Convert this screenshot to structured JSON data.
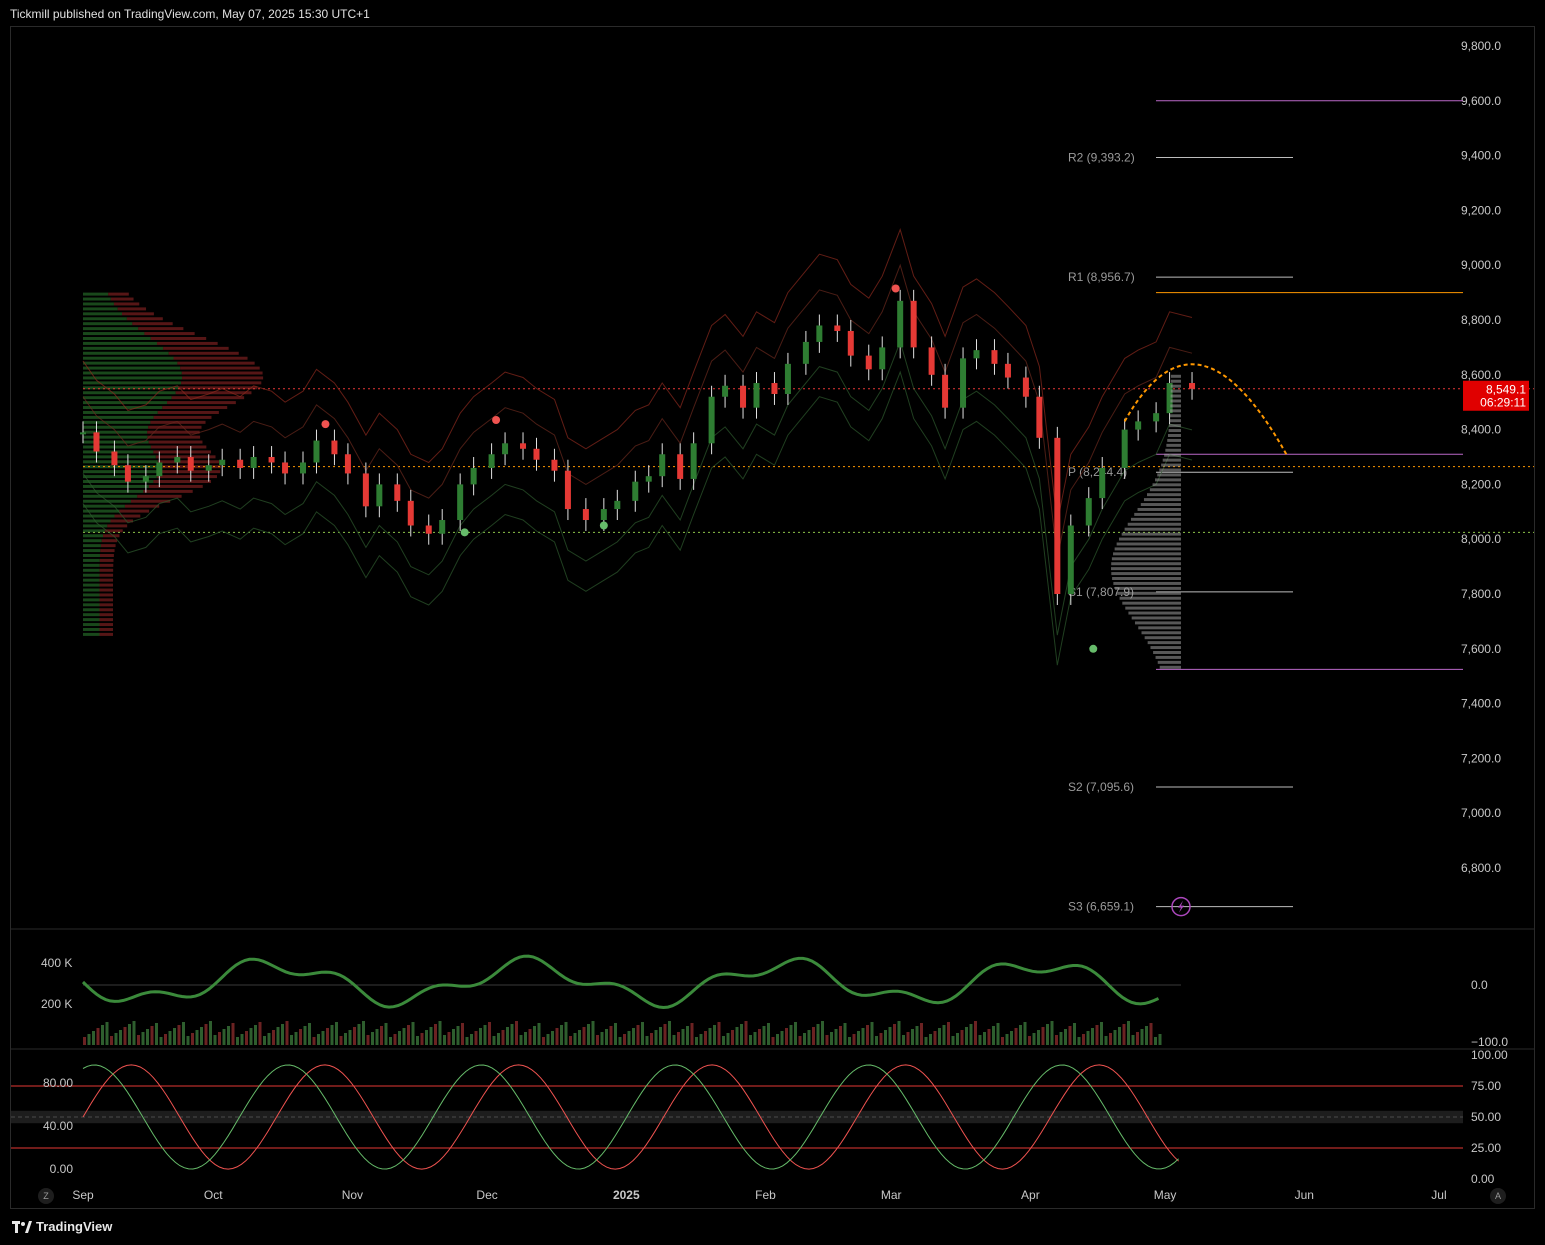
{
  "header": {
    "publisher": "Tickmill published on TradingView.com, May 07, 2025 15:30 UTC+1"
  },
  "brand": {
    "name": "TradingView"
  },
  "buttons": {
    "left": "Z",
    "right": "A"
  },
  "colors": {
    "up": "#2e7d32",
    "down": "#e53935",
    "pivot": "#cfcfcf",
    "orange": "#ff9800",
    "purple": "#ba68c8",
    "price_label_bg": "#e00000"
  },
  "chart_data": [
    {
      "type": "candlestick",
      "title": "",
      "y_axis": {
        "ticks": [
          "9,800.0",
          "9,600.0",
          "9,400.0",
          "9,200.0",
          "9,000.0",
          "8,800.0",
          "8,600.0",
          "8,400.0",
          "8,200.0",
          "8,000.0",
          "7,800.0",
          "7,600.0",
          "7,400.0",
          "7,200.0",
          "7,000.0",
          "6,800.0"
        ],
        "range": [
          6600,
          9900
        ]
      },
      "x_axis": {
        "labels": [
          "Sep",
          "Oct",
          "Nov",
          "Dec",
          "2025",
          "Feb",
          "Mar",
          "Apr",
          "May",
          "Jun",
          "Jul"
        ],
        "start": "2024-09-02",
        "end": "2025-07-15"
      },
      "last_price": {
        "value": "8,549.1",
        "countdown": "06:29:11"
      },
      "pivots": [
        {
          "label": "R2 (9,393.2)",
          "value": 9393.2
        },
        {
          "label": "R1 (8,956.7)",
          "value": 8956.7
        },
        {
          "label": "P (8,244.4)",
          "value": 8244.4
        },
        {
          "label": "S1 (7,807.9)",
          "value": 7807.9
        },
        {
          "label": "S2 (7,095.6)",
          "value": 7095.6
        },
        {
          "label": "S3 (6,659.1)",
          "value": 6659.1
        }
      ],
      "horizontal_levels": [
        {
          "value": 9600,
          "color": "#ba68c8",
          "style": "solid"
        },
        {
          "value": 8900,
          "color": "#ff9800",
          "style": "solid"
        },
        {
          "value": 8310,
          "color": "#ba68c8",
          "style": "solid"
        },
        {
          "value": 7525,
          "color": "#ba68c8",
          "style": "solid"
        },
        {
          "value": 8549.1,
          "color": "#e53935",
          "style": "dotted"
        },
        {
          "value": 8265,
          "color": "#ff9800",
          "style": "dotted"
        },
        {
          "value": 8025,
          "color": "#8bc34a",
          "style": "dotted"
        }
      ],
      "markers": [
        {
          "date": "2024-10-26",
          "value": 8420,
          "color": "#ef5350"
        },
        {
          "date": "2024-11-26",
          "value": 8025,
          "color": "#66bb6a"
        },
        {
          "date": "2024-12-03",
          "value": 8435,
          "color": "#ef5350"
        },
        {
          "date": "2024-12-27",
          "value": 8050,
          "color": "#66bb6a"
        },
        {
          "date": "2025-03-02",
          "value": 8915,
          "color": "#ef5350"
        },
        {
          "date": "2025-04-15",
          "value": 7600,
          "color": "#66bb6a"
        }
      ],
      "series": [
        {
          "name": "",
          "type": "ohlc_close",
          "points": [
            [
              "2024-09-02",
              8390
            ],
            [
              "2024-09-05",
              8320
            ],
            [
              "2024-09-09",
              8270
            ],
            [
              "2024-09-12",
              8210
            ],
            [
              "2024-09-16",
              8230
            ],
            [
              "2024-09-19",
              8280
            ],
            [
              "2024-09-23",
              8300
            ],
            [
              "2024-09-26",
              8250
            ],
            [
              "2024-09-30",
              8270
            ],
            [
              "2024-10-03",
              8290
            ],
            [
              "2024-10-07",
              8260
            ],
            [
              "2024-10-10",
              8300
            ],
            [
              "2024-10-14",
              8280
            ],
            [
              "2024-10-17",
              8240
            ],
            [
              "2024-10-21",
              8280
            ],
            [
              "2024-10-24",
              8360
            ],
            [
              "2024-10-28",
              8310
            ],
            [
              "2024-10-31",
              8240
            ],
            [
              "2024-11-04",
              8120
            ],
            [
              "2024-11-07",
              8200
            ],
            [
              "2024-11-11",
              8140
            ],
            [
              "2024-11-14",
              8050
            ],
            [
              "2024-11-18",
              8020
            ],
            [
              "2024-11-21",
              8070
            ],
            [
              "2024-11-25",
              8200
            ],
            [
              "2024-11-28",
              8260
            ],
            [
              "2024-12-02",
              8310
            ],
            [
              "2024-12-05",
              8350
            ],
            [
              "2024-12-09",
              8330
            ],
            [
              "2024-12-12",
              8290
            ],
            [
              "2024-12-16",
              8250
            ],
            [
              "2024-12-19",
              8110
            ],
            [
              "2024-12-23",
              8070
            ],
            [
              "2024-12-27",
              8110
            ],
            [
              "2024-12-30",
              8140
            ],
            [
              "2025-01-03",
              8210
            ],
            [
              "2025-01-06",
              8230
            ],
            [
              "2025-01-09",
              8310
            ],
            [
              "2025-01-13",
              8220
            ],
            [
              "2025-01-16",
              8350
            ],
            [
              "2025-01-20",
              8520
            ],
            [
              "2025-01-23",
              8560
            ],
            [
              "2025-01-27",
              8480
            ],
            [
              "2025-01-30",
              8570
            ],
            [
              "2025-02-03",
              8530
            ],
            [
              "2025-02-06",
              8640
            ],
            [
              "2025-02-10",
              8720
            ],
            [
              "2025-02-13",
              8780
            ],
            [
              "2025-02-17",
              8760
            ],
            [
              "2025-02-20",
              8670
            ],
            [
              "2025-02-24",
              8620
            ],
            [
              "2025-02-27",
              8700
            ],
            [
              "2025-03-03",
              8870
            ],
            [
              "2025-03-06",
              8700
            ],
            [
              "2025-03-10",
              8600
            ],
            [
              "2025-03-13",
              8480
            ],
            [
              "2025-03-17",
              8660
            ],
            [
              "2025-03-20",
              8690
            ],
            [
              "2025-03-24",
              8640
            ],
            [
              "2025-03-27",
              8590
            ],
            [
              "2025-03-31",
              8520
            ],
            [
              "2025-04-03",
              8370
            ],
            [
              "2025-04-07",
              7800
            ],
            [
              "2025-04-10",
              8050
            ],
            [
              "2025-04-14",
              8150
            ],
            [
              "2025-04-17",
              8260
            ],
            [
              "2025-04-22",
              8400
            ],
            [
              "2025-04-25",
              8430
            ],
            [
              "2025-04-29",
              8460
            ],
            [
              "2025-05-02",
              8570
            ],
            [
              "2025-05-07",
              8549
            ]
          ]
        }
      ],
      "volume_profile": "left and right histograms",
      "projection": "orange dashed arc down from 8,720 toward 8,310"
    },
    {
      "type": "line",
      "title": "",
      "y_axis": {
        "left_ticks": [
          "400 K",
          "200 K"
        ],
        "right_ticks": [
          "0.0",
          "−100.0"
        ]
      },
      "series": [
        {
          "name": "",
          "type": "oscillator_with_volume_bars"
        }
      ]
    },
    {
      "type": "line",
      "title": "",
      "y_axis": {
        "left_ticks": [
          "80.00",
          "40.00",
          "0.00"
        ],
        "right_ticks": [
          "100.00",
          "75.00",
          "50.00",
          "25.00",
          "0.00"
        ],
        "range": [
          0,
          100
        ]
      },
      "levels": [
        75,
        50,
        25
      ],
      "series": [
        {
          "name": "",
          "color": "#ef5350"
        },
        {
          "name": "",
          "color": "#66bb6a"
        }
      ]
    }
  ]
}
